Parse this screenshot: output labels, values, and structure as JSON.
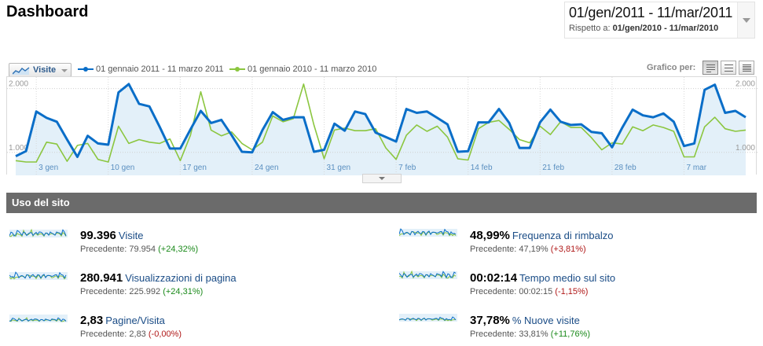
{
  "header": {
    "title": "Dashboard",
    "date_range": "01/gen/2011 - 11/mar/2011",
    "compare_prefix": "Rispetto a:",
    "compare_range": "01/gen/2010 - 11/mar/2010"
  },
  "chart_toolbar": {
    "metric_selector": "Visite",
    "legend_current": "01 gennaio 2011 - 11 marzo 2011",
    "legend_previous": "01 gennaio 2010 - 11 marzo 2010",
    "chart_by_label": "Grafico per:",
    "view_icons": [
      "day-view-icon",
      "week-view-icon",
      "month-view-icon"
    ]
  },
  "colors": {
    "current": "#0a6ec8",
    "previous": "#8bc63f",
    "fill": "#e3f0f9",
    "positive": "#1b8a1b",
    "negative": "#b01818",
    "section_header": "#6b6b6b"
  },
  "chart_data": {
    "type": "line",
    "ylabel_ticks": [
      "2.000",
      "1.000"
    ],
    "y_ticks_values": [
      2000,
      1000
    ],
    "ylim": [
      640,
      2180
    ],
    "x_tick_labels": [
      "3 gen",
      "10 gen",
      "17 gen",
      "24 gen",
      "31 gen",
      "7 feb",
      "14 feb",
      "21 feb",
      "28 feb",
      "7 mar"
    ],
    "x_tick_day_index": [
      2,
      9,
      16,
      23,
      30,
      37,
      44,
      51,
      58,
      65
    ],
    "grid": true,
    "series": [
      {
        "name": "01 gennaio 2011 - 11 marzo 2011",
        "color": "#0a6ec8",
        "values": [
          940,
          1020,
          1640,
          1540,
          1480,
          1200,
          930,
          1260,
          1140,
          1120,
          1940,
          2070,
          1760,
          1720,
          1400,
          1060,
          1060,
          1360,
          1650,
          1460,
          1510,
          1270,
          1010,
          1000,
          1350,
          1630,
          1510,
          1550,
          1550,
          1010,
          1040,
          1450,
          1340,
          1640,
          1600,
          1310,
          1240,
          1170,
          1680,
          1620,
          1640,
          1540,
          1440,
          1010,
          1020,
          1470,
          1470,
          1680,
          1460,
          1070,
          1070,
          1470,
          1670,
          1480,
          1430,
          1440,
          1320,
          1300,
          1080,
          1390,
          1670,
          1580,
          1550,
          1610,
          1480,
          1100,
          1140,
          1980,
          2060,
          1620,
          1650,
          1550
        ]
      },
      {
        "name": "01 gennaio 2010 - 11 marzo 2010",
        "color": "#8bc63f",
        "values": [
          870,
          850,
          850,
          1160,
          1130,
          860,
          1110,
          1140,
          890,
          850,
          1410,
          1140,
          1200,
          1160,
          1140,
          1210,
          870,
          1270,
          1950,
          1350,
          1260,
          1320,
          1140,
          1040,
          1160,
          1570,
          1480,
          1530,
          2070,
          1430,
          900,
          1350,
          1380,
          1340,
          1340,
          1370,
          1070,
          890,
          1270,
          1430,
          1330,
          1410,
          1240,
          900,
          880,
          1370,
          1470,
          1500,
          1360,
          1200,
          1150,
          1410,
          1280,
          1480,
          1390,
          1390,
          1230,
          1040,
          1150,
          1130,
          1400,
          1340,
          1430,
          1390,
          1330,
          930,
          930,
          1400,
          1550,
          1370,
          1330,
          1350
        ]
      }
    ]
  },
  "section": {
    "title": "Uso del sito"
  },
  "metrics": [
    {
      "value": "99.396",
      "name": "Visite",
      "prev_label": "Precedente:",
      "prev_value": "79.954",
      "change": "(+24,32%)",
      "trend": "positive"
    },
    {
      "value": "280.941",
      "name": "Visualizzazioni di pagina",
      "prev_label": "Precedente:",
      "prev_value": "225.992",
      "change": "(+24,31%)",
      "trend": "positive"
    },
    {
      "value": "2,83",
      "name": "Pagine/Visita",
      "prev_label": "Precedente:",
      "prev_value": "2,83",
      "change": "(-0,00%)",
      "trend": "negative"
    },
    {
      "value": "48,99%",
      "name": "Frequenza di rimbalzo",
      "prev_label": "Precedente:",
      "prev_value": "47,19%",
      "change": "(+3,81%)",
      "trend": "negative"
    },
    {
      "value": "00:02:14",
      "name": "Tempo medio sul sito",
      "prev_label": "Precedente:",
      "prev_value": "00:02:15",
      "change": "(-1,15%)",
      "trend": "negative"
    },
    {
      "value": "37,78%",
      "name": "% Nuove visite",
      "prev_label": "Precedente:",
      "prev_value": "33,81%",
      "change": "(+11,76%)",
      "trend": "positive"
    }
  ]
}
